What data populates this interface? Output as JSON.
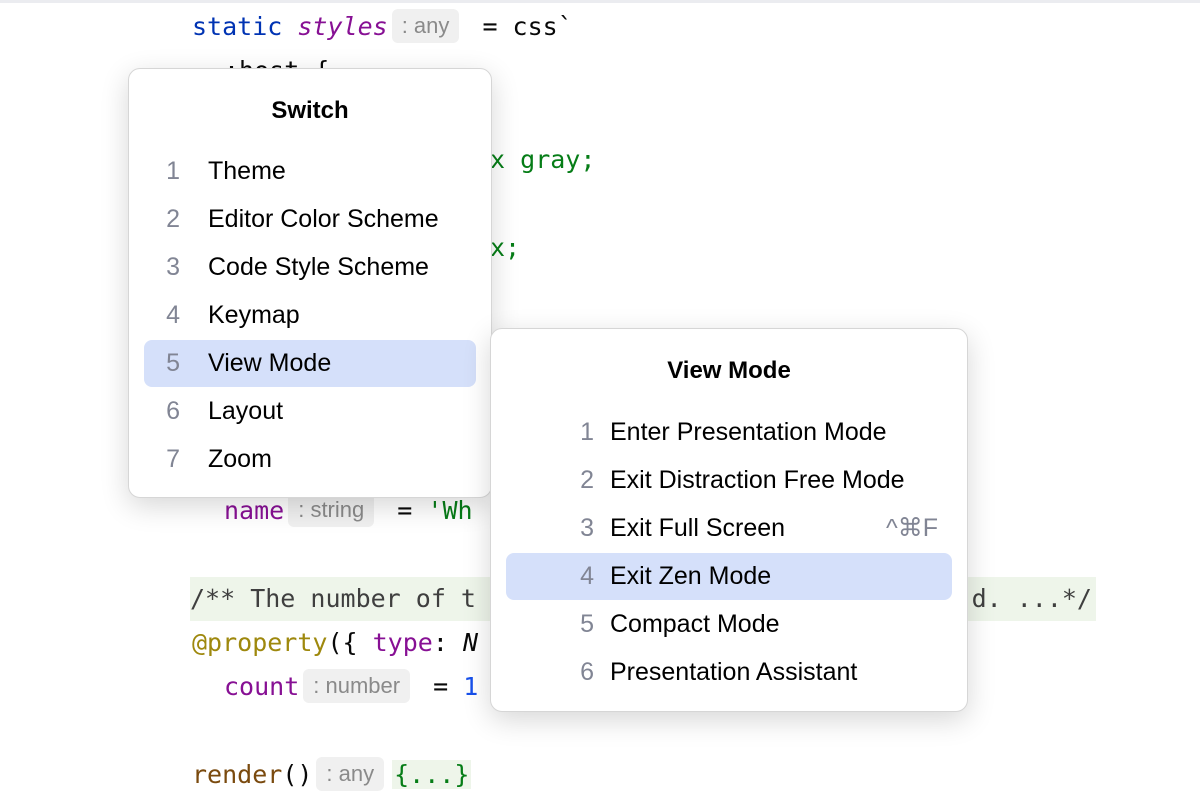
{
  "editor": {
    "line1": {
      "kw": "static",
      "field": "styles",
      "hint": ": any",
      "rest": " = css`"
    },
    "line2": ":host {",
    "line3": "px gray;",
    "line4": "x;",
    "line5": {
      "field": "name",
      "hint": ": string",
      "rest": " = ",
      "str": "'Wh"
    },
    "line6": {
      "left": "/** The number of t",
      "right": "d. ...*/"
    },
    "line7": {
      "ann": "@property",
      "rest": "({ ",
      "field": "type",
      "colon": ": ",
      "it": "N"
    },
    "line8": {
      "field": "count",
      "hint": ": number",
      "rest": " = ",
      "num": "1"
    },
    "line9": {
      "fn": "render",
      "rest": "()",
      "hint": ": any",
      "fold": "{...}"
    }
  },
  "switch_popup": {
    "title": "Switch",
    "items": [
      {
        "n": "1",
        "label": "Theme"
      },
      {
        "n": "2",
        "label": "Editor Color Scheme"
      },
      {
        "n": "3",
        "label": "Code Style Scheme"
      },
      {
        "n": "4",
        "label": "Keymap"
      },
      {
        "n": "5",
        "label": "View Mode",
        "selected": true
      },
      {
        "n": "6",
        "label": "Layout"
      },
      {
        "n": "7",
        "label": "Zoom"
      }
    ]
  },
  "view_mode_popup": {
    "title": "View Mode",
    "items": [
      {
        "n": "1",
        "label": "Enter Presentation Mode"
      },
      {
        "n": "2",
        "label": "Exit Distraction Free Mode"
      },
      {
        "n": "3",
        "label": "Exit Full Screen",
        "shortcut": "^⌘F"
      },
      {
        "n": "4",
        "label": "Exit Zen Mode",
        "selected": true
      },
      {
        "n": "5",
        "label": "Compact Mode"
      },
      {
        "n": "6",
        "label": "Presentation Assistant"
      }
    ]
  },
  "colors": {
    "selection": "#d5e0fa",
    "keyword": "#0033b3",
    "field": "#871094",
    "string": "#067d17"
  }
}
